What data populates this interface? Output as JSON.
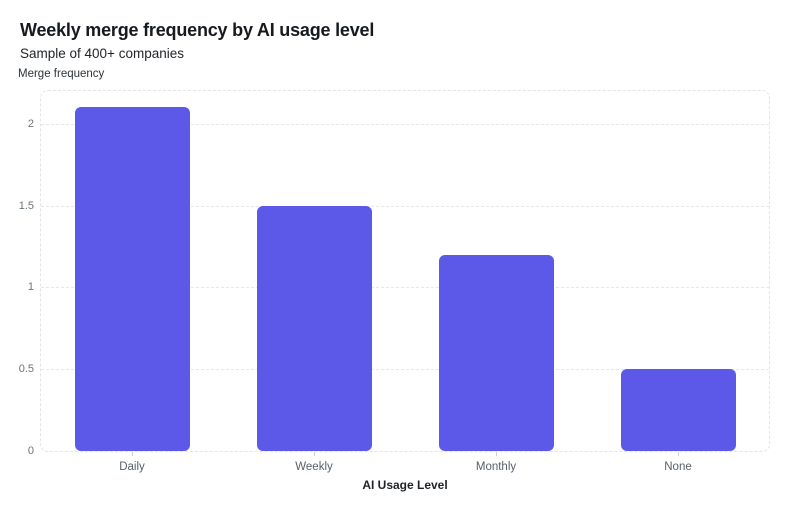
{
  "page": {
    "title": "Weekly merge frequency by AI usage level",
    "subtitle": "Sample of 400+ companies"
  },
  "chart_data": {
    "type": "bar",
    "title": "Weekly merge frequency by AI usage level",
    "subtitle": "Sample of 400+ companies",
    "categories": [
      "Daily",
      "Weekly",
      "Monthly",
      "None"
    ],
    "values": [
      2.1,
      1.5,
      1.2,
      0.5
    ],
    "xlabel": "AI Usage Level",
    "ylabel": "Merge frequency",
    "ylim": [
      0,
      2.2
    ],
    "yticks": [
      0,
      0.5,
      1,
      1.5,
      2
    ],
    "ytick_labels": [
      "0",
      "0.5",
      "1",
      "1.5",
      "2"
    ],
    "grid": "horizontal-dashed",
    "legend": "none",
    "bar_color": "#5c59e8",
    "grid_color": "#e7e7e7",
    "border_color": "#e4e4e4"
  },
  "colors": {
    "background": "#ffffff",
    "title_text": "#16191d",
    "subtitle_text": "#1f2328",
    "axis_text": "#6a737d",
    "category_text": "#57606a"
  }
}
